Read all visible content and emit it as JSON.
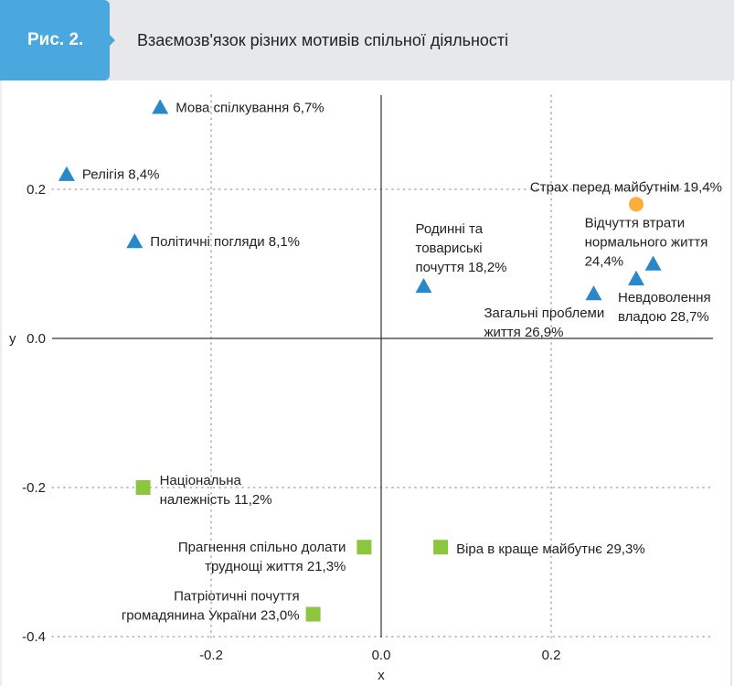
{
  "header": {
    "figure_label": "Рис. 2.",
    "title": "Взаємозв'язок різних мотивів спільної діяльності"
  },
  "colors": {
    "header_accent": "#4ba8de",
    "header_band": "#e7e8ea",
    "triangle": "#2a88c9",
    "circle": "#fbae3c",
    "square": "#8cc63f"
  },
  "chart_data": {
    "type": "scatter",
    "title": "Взаємозв'язок різних мотивів спільної діяльності",
    "xlabel": "x",
    "ylabel": "y",
    "xlim": [
      -0.385,
      0.39
    ],
    "ylim": [
      -0.4,
      0.33
    ],
    "xticks": [
      -0.2,
      0.0,
      0.2
    ],
    "xtick_labels": [
      "-0.2",
      "0.0",
      "0.2"
    ],
    "yticks": [
      0.2,
      0.0,
      -0.2,
      -0.4
    ],
    "ytick_labels": [
      "0.2",
      "0.0",
      "-0.2",
      "-0.4"
    ],
    "grid": "dotted",
    "legend": "none",
    "points": [
      {
        "name": "mova",
        "label": [
          "Мова спілкування 6,7%"
        ],
        "x": -0.26,
        "y": 0.31,
        "shape": "triangle",
        "label_pos": "right"
      },
      {
        "name": "religiya",
        "label": [
          "Релігія 8,4%"
        ],
        "x": -0.37,
        "y": 0.22,
        "shape": "triangle",
        "label_pos": "right"
      },
      {
        "name": "politychni-pohlyady",
        "label": [
          "Політичні погляди 8,1%"
        ],
        "x": -0.29,
        "y": 0.13,
        "shape": "triangle",
        "label_pos": "right"
      },
      {
        "name": "rodynni-pochuttya",
        "label": [
          "Родинні та",
          "товариські",
          "почуття 18,2%"
        ],
        "x": 0.05,
        "y": 0.07,
        "shape": "triangle",
        "label_pos": "above"
      },
      {
        "name": "strakh",
        "label": [
          "Страх перед майбутнім 19,4%"
        ],
        "x": 0.3,
        "y": 0.18,
        "shape": "circle",
        "label_pos": "above-left"
      },
      {
        "name": "vidchuttya-vtraty",
        "label": [
          "Відчуття втрати",
          "нормального життя",
          "24,4%"
        ],
        "x": 0.32,
        "y": 0.1,
        "shape": "triangle",
        "label_pos": "left-above"
      },
      {
        "name": "nevdovolennya",
        "label": [
          "Невдоволення",
          "владою 28,7%"
        ],
        "x": 0.3,
        "y": 0.08,
        "shape": "triangle",
        "label_pos": "below"
      },
      {
        "name": "zahalni-problemy",
        "label": [
          "Загальні проблеми",
          "життя 26,9%"
        ],
        "x": 0.25,
        "y": 0.06,
        "shape": "triangle",
        "label_pos": "below-left"
      },
      {
        "name": "natsionalna",
        "label": [
          "Національна",
          "належність 11,2%"
        ],
        "x": -0.28,
        "y": -0.2,
        "shape": "square",
        "label_pos": "right"
      },
      {
        "name": "prahnennya",
        "label": [
          "Прагнення спільно долати",
          "труднощі життя 21,3%"
        ],
        "x": -0.02,
        "y": -0.28,
        "shape": "square",
        "label_pos": "left"
      },
      {
        "name": "patriotychni",
        "label": [
          "Патріотичні почуття",
          "громадянина України 23,0%"
        ],
        "x": -0.08,
        "y": -0.37,
        "shape": "square",
        "label_pos": "left"
      },
      {
        "name": "vira",
        "label": [
          "Віра в краще майбутнє  29,3%"
        ],
        "x": 0.07,
        "y": -0.28,
        "shape": "square",
        "label_pos": "right"
      }
    ]
  }
}
